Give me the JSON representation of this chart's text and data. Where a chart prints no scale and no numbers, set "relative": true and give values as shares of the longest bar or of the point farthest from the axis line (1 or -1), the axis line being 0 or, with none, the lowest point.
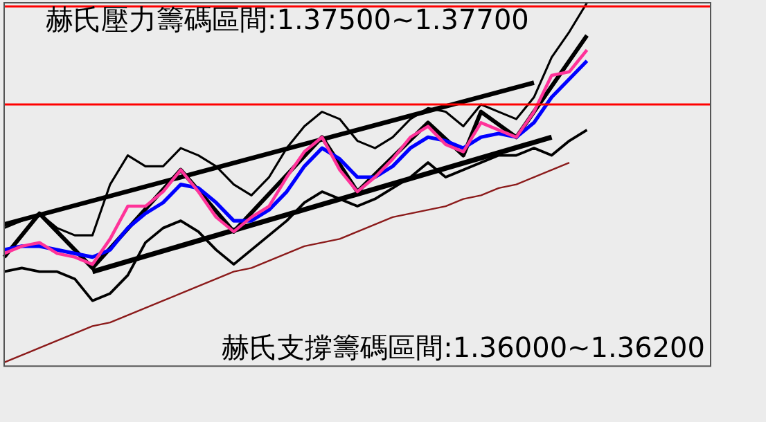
{
  "chart_data": {
    "type": "line",
    "relative": true,
    "legend": false,
    "grid": false,
    "marker": "none",
    "line_style": "solid",
    "annotations": [
      "赫氏壓力籌碼區間:1.37500~1.37700",
      "赫氏支撐籌碼區間:1.36000~1.36200"
    ],
    "categories": [
      null,
      null,
      null,
      null,
      null,
      null,
      null,
      null,
      null,
      null,
      null,
      null,
      null,
      null,
      null,
      null,
      null,
      null,
      null,
      null,
      null,
      null,
      null,
      null,
      null,
      null,
      null,
      null,
      null,
      null,
      null,
      null,
      null,
      null,
      null,
      null,
      null,
      null,
      null,
      null,
      null
    ],
    "ref_lines": [
      {
        "axis": "y",
        "value": 0.99,
        "color": "#ff0000"
      },
      {
        "axis": "y",
        "value": 0.72,
        "color": "#ff0000"
      }
    ],
    "series": [
      {
        "color": "#8b1a1a",
        "values": [
          0.01,
          0.03,
          0.05,
          0.07,
          0.09,
          0.11,
          0.12,
          0.14,
          0.16,
          0.18,
          0.2,
          0.22,
          0.24,
          0.26,
          0.27,
          0.29,
          0.31,
          0.33,
          0.34,
          0.35,
          0.37,
          0.39,
          0.41,
          0.42,
          0.43,
          0.44,
          0.46,
          0.47,
          0.49,
          0.5,
          0.52,
          0.54,
          0.56,
          null,
          null,
          null,
          null,
          null,
          null,
          null,
          null
        ]
      },
      {
        "color": "#000000",
        "values": [
          0.38,
          0.4,
          0.42,
          0.38,
          0.36,
          0.36,
          0.5,
          0.58,
          0.55,
          0.55,
          0.6,
          0.58,
          0.55,
          0.5,
          0.47,
          0.52,
          0.6,
          0.66,
          0.7,
          0.68,
          0.62,
          0.6,
          0.63,
          0.68,
          0.71,
          0.7,
          0.66,
          0.72,
          0.7,
          0.68,
          0.74,
          0.85,
          0.92,
          1.0,
          null,
          null,
          null,
          null,
          null,
          null,
          null
        ]
      },
      {
        "color": "#000000",
        "values": [
          0.26,
          0.27,
          0.26,
          0.26,
          0.24,
          0.18,
          0.2,
          0.25,
          0.34,
          0.38,
          0.4,
          0.37,
          0.32,
          0.28,
          0.32,
          0.36,
          0.4,
          0.45,
          0.48,
          0.46,
          0.44,
          0.46,
          0.49,
          0.52,
          0.56,
          0.52,
          0.54,
          0.56,
          0.58,
          0.58,
          0.6,
          0.58,
          0.62,
          0.65,
          null,
          null,
          null,
          null,
          null,
          null,
          null
        ]
      },
      {
        "color": "#ff3399",
        "values": [
          0.31,
          0.33,
          0.34,
          0.31,
          0.3,
          0.28,
          0.35,
          0.44,
          0.44,
          0.48,
          0.54,
          0.48,
          0.41,
          0.37,
          0.41,
          0.44,
          0.52,
          0.59,
          0.63,
          0.54,
          0.48,
          0.52,
          0.57,
          0.63,
          0.66,
          0.61,
          0.59,
          0.67,
          0.65,
          0.63,
          0.7,
          0.8,
          0.81,
          0.87,
          null,
          null,
          null,
          null,
          null,
          null,
          null
        ]
      },
      {
        "color": "#0000ff",
        "values": [
          0.32,
          0.33,
          0.33,
          0.32,
          0.31,
          0.3,
          0.32,
          0.38,
          0.42,
          0.45,
          0.5,
          0.49,
          0.45,
          0.4,
          0.4,
          0.43,
          0.48,
          0.55,
          0.6,
          0.57,
          0.52,
          0.52,
          0.55,
          0.6,
          0.63,
          0.62,
          0.6,
          0.63,
          0.64,
          0.63,
          0.67,
          0.74,
          0.79,
          0.84,
          null,
          null,
          null,
          null,
          null,
          null,
          null
        ]
      },
      {
        "color": "#000000",
        "values": [
          0.3,
          null,
          0.42,
          null,
          null,
          0.27,
          null,
          null,
          null,
          null,
          0.54,
          null,
          null,
          0.37,
          null,
          null,
          null,
          null,
          0.63,
          null,
          0.48,
          null,
          null,
          null,
          0.67,
          null,
          0.58,
          0.7,
          null,
          0.63,
          null,
          null,
          null,
          0.91,
          null,
          null,
          null,
          null,
          null,
          null,
          null
        ]
      },
      {
        "color": "#000000",
        "values": [
          0.39,
          null,
          null,
          null,
          null,
          null,
          null,
          null,
          null,
          null,
          null,
          null,
          null,
          null,
          null,
          null,
          null,
          null,
          null,
          null,
          null,
          null,
          null,
          null,
          null,
          null,
          null,
          null,
          null,
          null,
          0.78,
          null,
          null,
          null,
          null,
          null,
          null,
          null,
          null,
          null,
          null
        ]
      },
      {
        "color": "#000000",
        "values": [
          null,
          null,
          null,
          null,
          null,
          0.26,
          null,
          null,
          null,
          null,
          null,
          null,
          null,
          null,
          null,
          null,
          null,
          null,
          null,
          null,
          null,
          null,
          null,
          null,
          null,
          null,
          null,
          null,
          null,
          null,
          null,
          0.63,
          null,
          null,
          null,
          null,
          null,
          null,
          null,
          null,
          null
        ]
      }
    ]
  }
}
